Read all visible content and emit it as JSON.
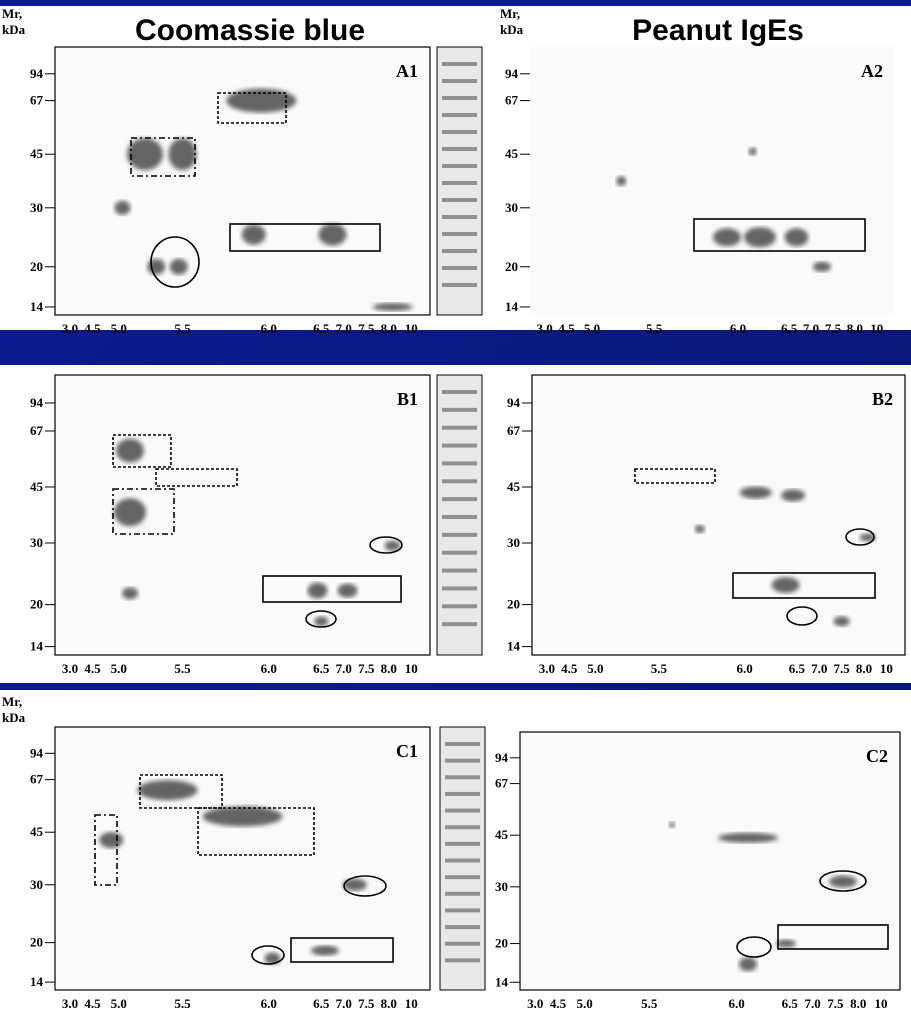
{
  "headers": [
    "Coomassie blue",
    "Peanut IgEs"
  ],
  "axis_title": [
    "Mr,",
    "kDa"
  ],
  "mw_markers": [
    "94",
    "67",
    "45",
    "30",
    "20",
    "14"
  ],
  "pi_labels": [
    "3.0",
    "4.5",
    "5.0",
    "5.5",
    "6.0",
    "6.5",
    "7.0",
    "7.5",
    "8.0",
    "10"
  ],
  "panels": [
    {
      "label": "A1"
    },
    {
      "label": "A2"
    },
    {
      "label": "B1"
    },
    {
      "label": "B2"
    },
    {
      "label": "C1"
    },
    {
      "label": "C2"
    }
  ]
}
